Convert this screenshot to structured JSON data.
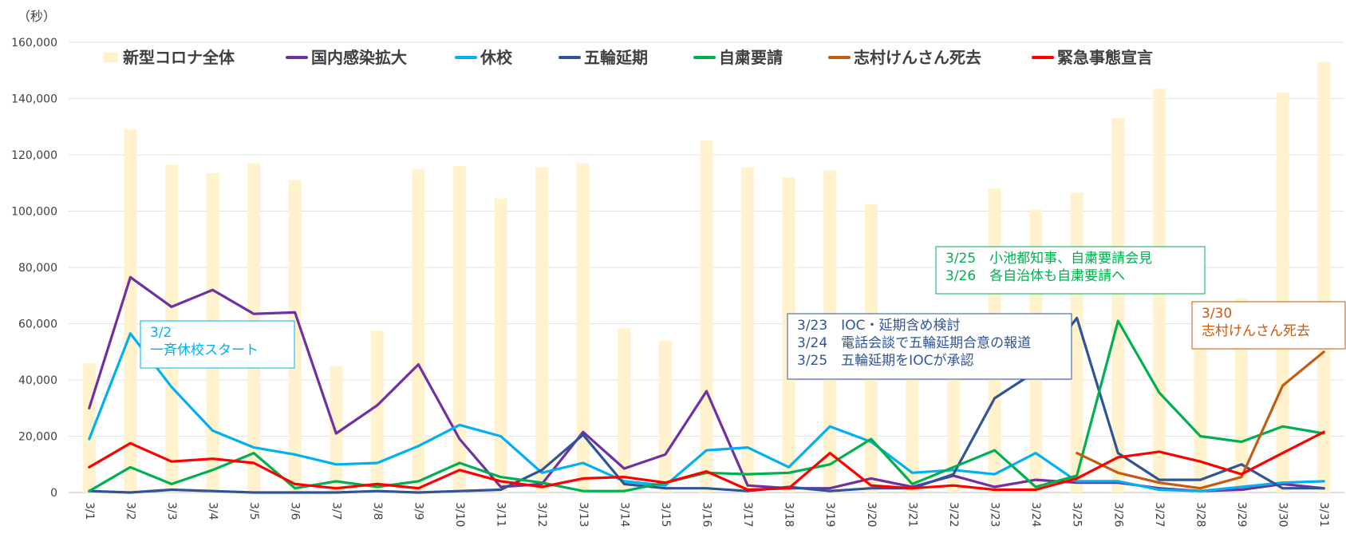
{
  "chart_data": {
    "type": "bar+line",
    "y_unit": "（秒）",
    "ylim": [
      0,
      160000
    ],
    "yticks": [
      "0",
      "20,000",
      "40,000",
      "60,000",
      "80,000",
      "100,000",
      "120,000",
      "140,000",
      "160,000"
    ],
    "ytick_values": [
      0,
      20000,
      40000,
      60000,
      80000,
      100000,
      120000,
      140000,
      160000
    ],
    "grid": true,
    "legend_position": "top",
    "categories": [
      "3/1",
      "3/2",
      "3/3",
      "3/4",
      "3/5",
      "3/6",
      "3/7",
      "3/8",
      "3/9",
      "3/10",
      "3/11",
      "3/12",
      "3/13",
      "3/14",
      "3/15",
      "3/16",
      "3/17",
      "3/18",
      "3/19",
      "3/20",
      "3/21",
      "3/22",
      "3/23",
      "3/24",
      "3/25",
      "3/26",
      "3/27",
      "3/28",
      "3/29",
      "3/30",
      "3/31"
    ],
    "bar_series": {
      "name": "新型コロナ全体",
      "color": "#FFF2CC",
      "values": [
        46000,
        129000,
        116500,
        113500,
        117000,
        111000,
        45000,
        57500,
        115000,
        116000,
        104500,
        115500,
        117000,
        58500,
        54000,
        125000,
        115500,
        112000,
        114500,
        102500,
        43000,
        48000,
        108000,
        100500,
        106500,
        133000,
        143500,
        57000,
        69000,
        142000,
        153000
      ]
    },
    "line_series": [
      {
        "name": "国内感染拡大",
        "color": "#7030A0",
        "values": [
          30000,
          76500,
          66000,
          72000,
          63500,
          64000,
          21000,
          31000,
          45500,
          19000,
          2000,
          3000,
          21500,
          8500,
          13500,
          36000,
          2500,
          1500,
          1500,
          5000,
          2000,
          6000,
          2000,
          4500,
          3500,
          3500,
          1500,
          500,
          1000,
          3000,
          1500
        ]
      },
      {
        "name": "休校",
        "color": "#00B0F0",
        "values": [
          19000,
          56500,
          37500,
          22000,
          16000,
          13500,
          10000,
          10500,
          16500,
          24000,
          20000,
          7000,
          10500,
          4000,
          2500,
          15000,
          16000,
          9000,
          23500,
          18000,
          7000,
          8000,
          6500,
          14000,
          4000,
          4000,
          1000,
          500,
          2000,
          3500,
          4000
        ]
      },
      {
        "name": "五輪延期",
        "color": "#2F5597",
        "values": [
          500,
          0,
          1000,
          500,
          0,
          0,
          0,
          500,
          0,
          500,
          1000,
          8000,
          20500,
          3000,
          1500,
          1500,
          500,
          2000,
          500,
          1500,
          1500,
          6500,
          33500,
          43000,
          62000,
          14000,
          4500,
          4500,
          10000,
          1500,
          1500
        ]
      },
      {
        "name": "自粛要請",
        "color": "#00B050",
        "values": [
          500,
          9000,
          3000,
          8000,
          14000,
          1500,
          4000,
          2000,
          4000,
          10500,
          5500,
          3500,
          500,
          500,
          3500,
          7000,
          6500,
          7000,
          10000,
          19000,
          3000,
          9000,
          15000,
          2000,
          6000,
          61000,
          35500,
          20000,
          18000,
          23500,
          21000
        ]
      },
      {
        "name": "志村けんさん死去",
        "color": "#C55A11",
        "values": [
          null,
          null,
          null,
          null,
          null,
          null,
          null,
          null,
          null,
          null,
          null,
          null,
          null,
          null,
          null,
          null,
          null,
          null,
          null,
          null,
          null,
          null,
          null,
          null,
          14000,
          7000,
          3500,
          1500,
          5500,
          38000,
          50000
        ]
      },
      {
        "name": "緊急事態宣言",
        "color": "#FF0000",
        "values": [
          9000,
          17500,
          11000,
          12000,
          10500,
          3000,
          1500,
          3000,
          1500,
          8000,
          4000,
          2000,
          5000,
          5500,
          3500,
          7500,
          1000,
          1500,
          14000,
          2500,
          1500,
          2500,
          1000,
          1000,
          5000,
          12500,
          14500,
          11000,
          6500,
          14000,
          21500
        ]
      }
    ],
    "annotations": [
      {
        "id": "kyuko",
        "color": "#00B0F0",
        "lines": [
          "3/2",
          "一斉休校スタート"
        ]
      },
      {
        "id": "gorin",
        "color": "#2F5597",
        "lines": [
          "3/23　IOC・延期含め検討",
          "3/24　電話会談で五輪延期合意の報道",
          "3/25　五輪延期をIOCが承認"
        ]
      },
      {
        "id": "jishuku",
        "color": "#00B050",
        "lines": [
          "3/25　小池都知事、自粛要請会見",
          "3/26　各自治体も自粛要請へ"
        ]
      },
      {
        "id": "shimura",
        "color": "#C55A11",
        "lines": [
          "3/30",
          "志村けんさん死去"
        ]
      }
    ]
  }
}
